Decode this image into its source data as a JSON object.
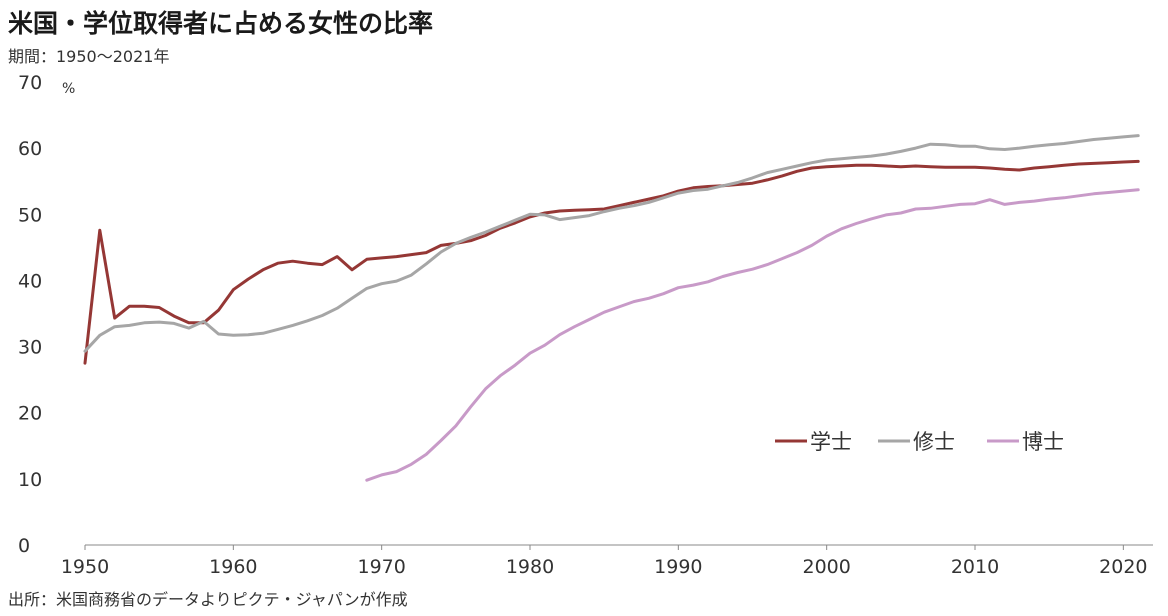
{
  "header": {
    "title": "米国・学位取得者に占める女性の比率",
    "subtitle": "期間：1950～2021年"
  },
  "footer": {
    "source": "出所：米国商務省のデータよりピクテ・ジャパンが作成"
  },
  "chart_data": {
    "type": "line",
    "title": "米国・学位取得者に占める女性の比率",
    "ylabel": "%",
    "xlim": [
      1950,
      2022
    ],
    "ylim": [
      0,
      70
    ],
    "x_ticks": [
      1950,
      1960,
      1970,
      1980,
      1990,
      2000,
      2010,
      2020
    ],
    "y_ticks": [
      0,
      10,
      20,
      30,
      40,
      50,
      60,
      70
    ],
    "grid": false,
    "legend_position": "right-middle",
    "series": [
      {
        "name": "学士",
        "color": "#953735",
        "x": [
          1950,
          1951,
          1952,
          1953,
          1954,
          1955,
          1956,
          1957,
          1958,
          1959,
          1960,
          1961,
          1962,
          1963,
          1964,
          1965,
          1966,
          1967,
          1968,
          1969,
          1970,
          1971,
          1972,
          1973,
          1974,
          1975,
          1976,
          1977,
          1978,
          1979,
          1980,
          1981,
          1982,
          1983,
          1984,
          1985,
          1986,
          1987,
          1988,
          1989,
          1990,
          1991,
          1992,
          1993,
          1994,
          1995,
          1996,
          1997,
          1998,
          1999,
          2000,
          2001,
          2002,
          2003,
          2004,
          2005,
          2006,
          2007,
          2008,
          2009,
          2010,
          2011,
          2012,
          2013,
          2014,
          2015,
          2016,
          2017,
          2018,
          2019,
          2020,
          2021
        ],
        "values": [
          27.5,
          47.6,
          34.3,
          36.1,
          36.1,
          35.9,
          34.6,
          33.6,
          33.6,
          35.5,
          38.6,
          40.2,
          41.6,
          42.6,
          42.9,
          42.6,
          42.4,
          43.6,
          41.6,
          43.2,
          43.4,
          43.6,
          43.9,
          44.2,
          45.3,
          45.6,
          46.0,
          46.8,
          47.9,
          48.7,
          49.6,
          50.2,
          50.5,
          50.6,
          50.7,
          50.8,
          51.3,
          51.8,
          52.3,
          52.8,
          53.5,
          54.0,
          54.2,
          54.3,
          54.5,
          54.7,
          55.2,
          55.8,
          56.5,
          57.0,
          57.2,
          57.3,
          57.4,
          57.4,
          57.3,
          57.2,
          57.3,
          57.2,
          57.1,
          57.1,
          57.1,
          57.0,
          56.8,
          56.7,
          57.0,
          57.2,
          57.4,
          57.6,
          57.7,
          57.8,
          57.9,
          58.0
        ]
      },
      {
        "name": "修士",
        "color": "#a6a6a6",
        "x": [
          1950,
          1951,
          1952,
          1953,
          1954,
          1955,
          1956,
          1957,
          1958,
          1959,
          1960,
          1961,
          1962,
          1963,
          1964,
          1965,
          1966,
          1967,
          1968,
          1969,
          1970,
          1971,
          1972,
          1973,
          1974,
          1975,
          1976,
          1977,
          1978,
          1979,
          1980,
          1981,
          1982,
          1983,
          1984,
          1985,
          1986,
          1987,
          1988,
          1989,
          1990,
          1991,
          1992,
          1993,
          1994,
          1995,
          1996,
          1997,
          1998,
          1999,
          2000,
          2001,
          2002,
          2003,
          2004,
          2005,
          2006,
          2007,
          2008,
          2009,
          2010,
          2011,
          2012,
          2013,
          2014,
          2015,
          2016,
          2017,
          2018,
          2019,
          2020,
          2021
        ],
        "values": [
          29.3,
          31.7,
          33.0,
          33.2,
          33.6,
          33.7,
          33.5,
          32.8,
          33.8,
          31.9,
          31.7,
          31.8,
          32.0,
          32.6,
          33.2,
          33.9,
          34.7,
          35.8,
          37.3,
          38.8,
          39.5,
          39.9,
          40.8,
          42.5,
          44.3,
          45.6,
          46.5,
          47.3,
          48.2,
          49.1,
          50.0,
          49.9,
          49.2,
          49.5,
          49.8,
          50.4,
          50.9,
          51.3,
          51.8,
          52.5,
          53.2,
          53.6,
          53.8,
          54.3,
          54.8,
          55.5,
          56.3,
          56.8,
          57.3,
          57.8,
          58.2,
          58.4,
          58.6,
          58.8,
          59.1,
          59.5,
          60.0,
          60.6,
          60.5,
          60.3,
          60.3,
          59.9,
          59.8,
          60.0,
          60.3,
          60.5,
          60.7,
          61.0,
          61.3,
          61.5,
          61.7,
          61.9
        ]
      },
      {
        "name": "博士",
        "color": "#c89ac8",
        "x": [
          1969,
          1970,
          1971,
          1972,
          1973,
          1974,
          1975,
          1976,
          1977,
          1978,
          1979,
          1980,
          1981,
          1982,
          1983,
          1984,
          1985,
          1986,
          1987,
          1988,
          1989,
          1990,
          1991,
          1992,
          1993,
          1994,
          1995,
          1996,
          1997,
          1998,
          1999,
          2000,
          2001,
          2002,
          2003,
          2004,
          2005,
          2006,
          2007,
          2008,
          2009,
          2010,
          2011,
          2012,
          2013,
          2014,
          2015,
          2016,
          2017,
          2018,
          2019,
          2020,
          2021
        ],
        "values": [
          9.8,
          10.6,
          11.1,
          12.2,
          13.7,
          15.8,
          18.0,
          20.9,
          23.6,
          25.6,
          27.2,
          29.0,
          30.2,
          31.8,
          33.0,
          34.1,
          35.2,
          36.0,
          36.8,
          37.3,
          38.0,
          38.9,
          39.3,
          39.8,
          40.6,
          41.2,
          41.7,
          42.4,
          43.3,
          44.2,
          45.3,
          46.7,
          47.8,
          48.6,
          49.3,
          49.9,
          50.2,
          50.8,
          50.9,
          51.2,
          51.5,
          51.6,
          52.2,
          51.5,
          51.8,
          52.0,
          52.3,
          52.5,
          52.8,
          53.1,
          53.3,
          53.5,
          53.7
        ]
      }
    ]
  }
}
